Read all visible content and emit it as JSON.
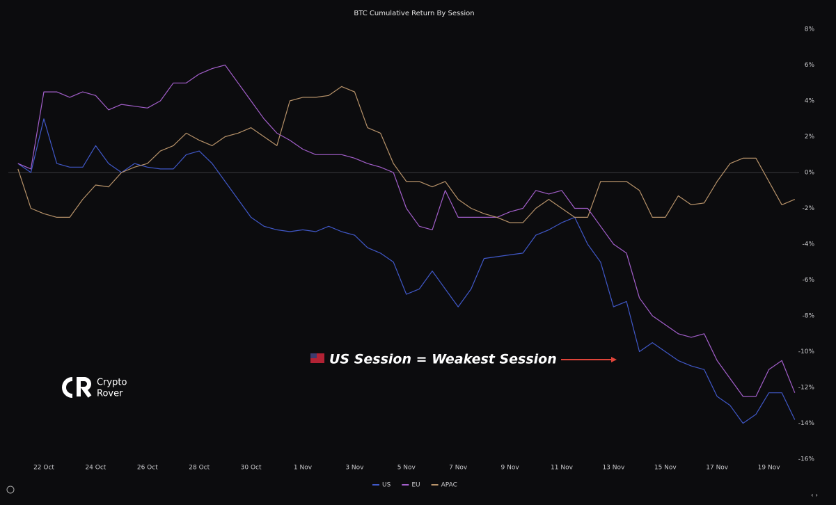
{
  "chart_data": {
    "type": "line",
    "title": "BTC Cumulative Return By Session",
    "annotation": "US Session = Weakest Session",
    "watermark": [
      "Crypto",
      "Rover"
    ],
    "categories": [
      null,
      null,
      "22 Oct",
      null,
      null,
      null,
      "24 Oct",
      null,
      null,
      null,
      "26 Oct",
      null,
      null,
      null,
      "28 Oct",
      null,
      null,
      null,
      "30 Oct",
      null,
      null,
      null,
      "1 Nov",
      null,
      null,
      null,
      "3 Nov",
      null,
      null,
      null,
      "5 Nov",
      null,
      null,
      null,
      "7 Nov",
      null,
      null,
      null,
      "9 Nov",
      null,
      null,
      null,
      "11 Nov",
      null,
      null,
      null,
      "13 Nov",
      null,
      null,
      null,
      "15 Nov",
      null,
      null,
      null,
      "17 Nov",
      null,
      null,
      null,
      "19 Nov",
      null,
      null
    ],
    "series": [
      {
        "name": "US",
        "color": "#4058c8",
        "values": [
          0.5,
          0,
          3,
          0.5,
          0.3,
          0.3,
          1.5,
          0.5,
          0,
          0.5,
          0.3,
          0.2,
          0.2,
          1,
          1.2,
          0.5,
          -0.5,
          -1.5,
          -2.5,
          -3,
          -3.2,
          -3.3,
          -3.2,
          -3.3,
          -3,
          -3.3,
          -3.5,
          -4.2,
          -4.5,
          -5,
          -6.8,
          -6.5,
          -5.5,
          -6.5,
          -7.5,
          -6.5,
          -4.8,
          -4.7,
          -4.6,
          -4.5,
          -3.5,
          -3.2,
          -2.8,
          -2.5,
          -4,
          -5,
          -7.5,
          -7.2,
          -10,
          -9.5,
          -10,
          -10.5,
          -10.8,
          -11,
          -12.5,
          -13,
          -14,
          -13.5,
          -12.3,
          -12.3,
          -13.8
        ]
      },
      {
        "name": "EU",
        "color": "#a35fcb",
        "values": [
          0.5,
          0.2,
          4.5,
          4.5,
          4.2,
          4.5,
          4.3,
          3.5,
          3.8,
          3.7,
          3.6,
          4,
          5,
          5,
          5.5,
          5.8,
          6,
          5,
          4,
          3,
          2.2,
          1.8,
          1.3,
          1,
          1,
          1,
          0.8,
          0.5,
          0.3,
          0,
          -2,
          -3,
          -3.2,
          -1,
          -2.5,
          -2.5,
          -2.5,
          -2.5,
          -2.2,
          -2,
          -1,
          -1.2,
          -1,
          -2,
          -2,
          -3,
          -4,
          -4.5,
          -7,
          -8,
          -8.5,
          -9,
          -9.2,
          -9,
          -10.5,
          -11.5,
          -12.5,
          -12.5,
          -11,
          -10.5,
          -12.3
        ]
      },
      {
        "name": "APAC",
        "color": "#b8936a",
        "values": [
          0.2,
          -2,
          -2.3,
          -2.5,
          -2.5,
          -1.5,
          -0.7,
          -0.8,
          0,
          0.3,
          0.5,
          1.2,
          1.5,
          2.2,
          1.8,
          1.5,
          2,
          2.2,
          2.5,
          2,
          1.5,
          4,
          4.2,
          4.2,
          4.3,
          4.8,
          4.5,
          2.5,
          2.2,
          0.5,
          -0.5,
          -0.5,
          -0.8,
          -0.5,
          -1.5,
          -2,
          -2.3,
          -2.5,
          -2.8,
          -2.8,
          -2,
          -1.5,
          -2,
          -2.5,
          -2.5,
          -0.5,
          -0.5,
          -0.5,
          -1,
          -2.5,
          -2.5,
          -1.3,
          -1.8,
          -1.7,
          -0.5,
          0.5,
          0.8,
          0.8,
          -0.5,
          -1.8,
          -1.5
        ]
      }
    ],
    "ylim": [
      -16,
      8
    ],
    "yticks": [
      {
        "value": 8,
        "label": "8%"
      },
      {
        "value": 6,
        "label": "6%"
      },
      {
        "value": 4,
        "label": "4%"
      },
      {
        "value": 2,
        "label": "2%"
      },
      {
        "value": 0,
        "label": "0%"
      },
      {
        "value": -2,
        "label": "-2%"
      },
      {
        "value": -4,
        "label": "-4%"
      },
      {
        "value": -6,
        "label": "-6%"
      },
      {
        "value": -8,
        "label": "-8%"
      },
      {
        "value": -10,
        "label": "-10%"
      },
      {
        "value": -12,
        "label": "-12%"
      },
      {
        "value": -14,
        "label": "-14%"
      },
      {
        "value": -16,
        "label": "-16%"
      }
    ],
    "y_axis_side": "right",
    "zero_line": true,
    "legend": "bottom"
  }
}
